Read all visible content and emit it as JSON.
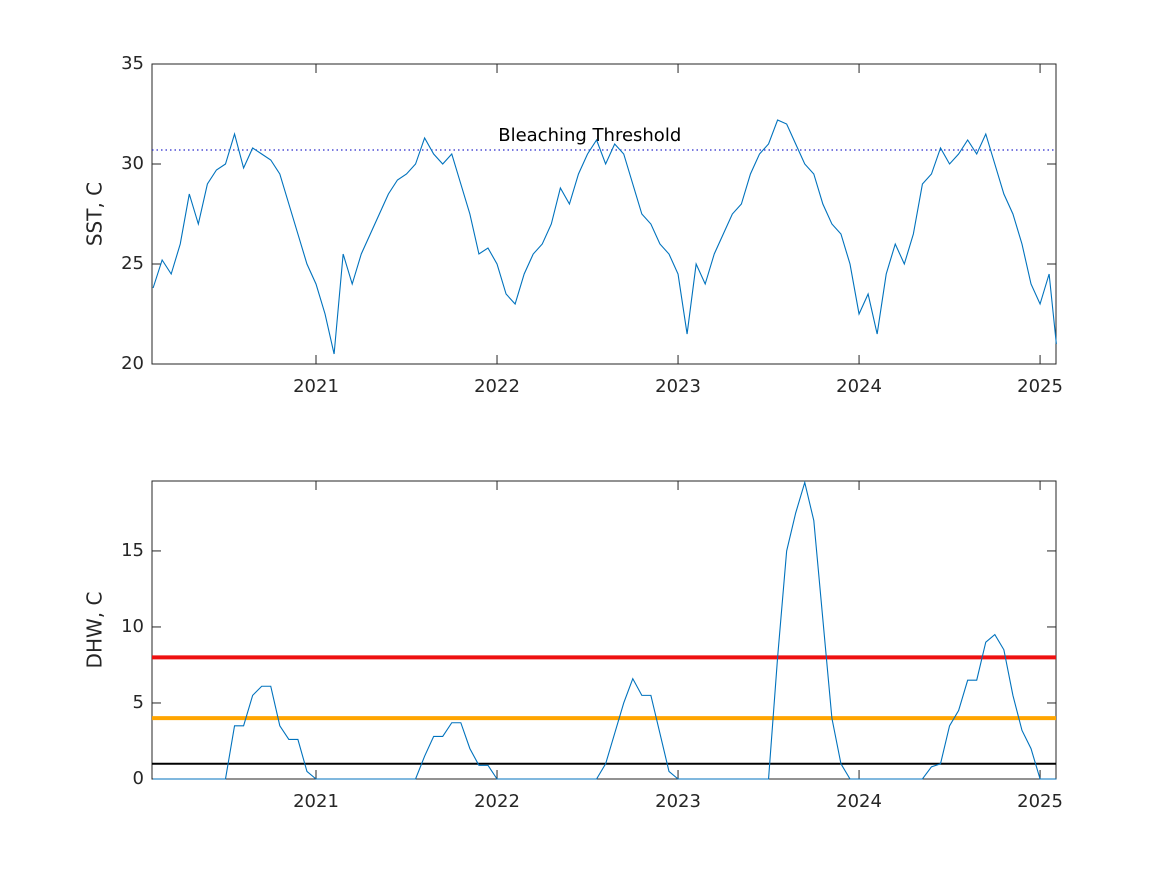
{
  "chart_data": [
    {
      "type": "line",
      "ylabel": "SST, C",
      "x": [
        2020.1,
        2020.15,
        2020.2,
        2020.25,
        2020.3,
        2020.35,
        2020.4,
        2020.45,
        2020.5,
        2020.55,
        2020.6,
        2020.65,
        2020.7,
        2020.75,
        2020.8,
        2020.85,
        2020.9,
        2020.95,
        2021.0,
        2021.05,
        2021.1,
        2021.15,
        2021.2,
        2021.25,
        2021.3,
        2021.35,
        2021.4,
        2021.45,
        2021.5,
        2021.55,
        2021.6,
        2021.65,
        2021.7,
        2021.75,
        2021.8,
        2021.85,
        2021.9,
        2021.95,
        2022.0,
        2022.05,
        2022.1,
        2022.15,
        2022.2,
        2022.25,
        2022.3,
        2022.35,
        2022.4,
        2022.45,
        2022.5,
        2022.55,
        2022.6,
        2022.65,
        2022.7,
        2022.75,
        2022.8,
        2022.85,
        2022.9,
        2022.95,
        2023.0,
        2023.05,
        2023.1,
        2023.15,
        2023.2,
        2023.25,
        2023.3,
        2023.35,
        2023.4,
        2023.45,
        2023.5,
        2023.55,
        2023.6,
        2023.65,
        2023.7,
        2023.75,
        2023.8,
        2023.85,
        2023.9,
        2023.95,
        2024.0,
        2024.05,
        2024.1,
        2024.15,
        2024.2,
        2024.25,
        2024.3,
        2024.35,
        2024.4,
        2024.45,
        2024.5,
        2024.55,
        2024.6,
        2024.65,
        2024.7,
        2024.75,
        2024.8,
        2024.85,
        2024.9,
        2024.95,
        2025.0,
        2025.05,
        2025.09
      ],
      "series": [
        {
          "color": "#0072bd",
          "values": [
            23.8,
            25.2,
            24.5,
            26.0,
            28.5,
            27.0,
            29.0,
            29.7,
            30.0,
            31.5,
            29.8,
            30.8,
            30.5,
            30.2,
            29.5,
            28.0,
            26.5,
            25.0,
            24.0,
            22.5,
            20.5,
            25.5,
            24.0,
            25.5,
            26.5,
            27.5,
            28.5,
            29.2,
            29.5,
            30.0,
            31.3,
            30.5,
            30.0,
            30.5,
            29.0,
            27.5,
            25.5,
            25.8,
            25.0,
            23.5,
            23.0,
            24.5,
            25.5,
            26.0,
            27.0,
            28.8,
            28.0,
            29.5,
            30.5,
            31.2,
            30.0,
            31.0,
            30.5,
            29.0,
            27.5,
            27.0,
            26.0,
            25.5,
            24.5,
            21.5,
            25.0,
            24.0,
            25.5,
            26.5,
            27.5,
            28.0,
            29.5,
            30.5,
            31.0,
            32.2,
            32.0,
            31.0,
            30.0,
            29.5,
            28.0,
            27.0,
            26.5,
            25.0,
            22.5,
            23.5,
            21.5,
            24.5,
            26.0,
            25.0,
            26.5,
            29.0,
            29.5,
            30.8,
            30.0,
            30.5,
            31.2,
            30.5,
            31.5,
            30.0,
            28.5,
            27.5,
            26.0,
            24.0,
            23.0,
            24.5,
            21.0
          ]
        }
      ],
      "xlim": [
        2020.094,
        2025.088
      ],
      "xticks": [
        2021,
        2022,
        2023,
        2024,
        2025
      ],
      "ylim": [
        20,
        35
      ],
      "yticks": [
        20,
        25,
        30,
        35
      ],
      "threshold": {
        "value": 30.7,
        "label": "Bleaching Threshold",
        "color": "#2a2acc"
      }
    },
    {
      "type": "line",
      "ylabel": "DHW, C",
      "x": [
        2020.1,
        2020.15,
        2020.2,
        2020.25,
        2020.3,
        2020.35,
        2020.4,
        2020.45,
        2020.5,
        2020.55,
        2020.6,
        2020.65,
        2020.7,
        2020.75,
        2020.8,
        2020.85,
        2020.9,
        2020.95,
        2021.0,
        2021.05,
        2021.1,
        2021.15,
        2021.2,
        2021.25,
        2021.3,
        2021.35,
        2021.4,
        2021.45,
        2021.5,
        2021.55,
        2021.6,
        2021.65,
        2021.7,
        2021.75,
        2021.8,
        2021.85,
        2021.9,
        2021.95,
        2022.0,
        2022.05,
        2022.1,
        2022.15,
        2022.2,
        2022.25,
        2022.3,
        2022.35,
        2022.4,
        2022.45,
        2022.5,
        2022.55,
        2022.6,
        2022.65,
        2022.7,
        2022.75,
        2022.8,
        2022.85,
        2022.9,
        2022.95,
        2023.0,
        2023.05,
        2023.1,
        2023.15,
        2023.2,
        2023.25,
        2023.3,
        2023.35,
        2023.4,
        2023.45,
        2023.5,
        2023.55,
        2023.6,
        2023.65,
        2023.7,
        2023.75,
        2023.8,
        2023.85,
        2023.9,
        2023.95,
        2024.0,
        2024.05,
        2024.1,
        2024.15,
        2024.2,
        2024.25,
        2024.3,
        2024.35,
        2024.4,
        2024.45,
        2024.5,
        2024.55,
        2024.6,
        2024.65,
        2024.7,
        2024.75,
        2024.8,
        2024.85,
        2024.9,
        2024.95,
        2025.0,
        2025.05,
        2025.09
      ],
      "series": [
        {
          "color": "#0072bd",
          "values": [
            0,
            0,
            0,
            0,
            0,
            0,
            0,
            0,
            0,
            3.5,
            3.5,
            5.5,
            6.1,
            6.1,
            3.5,
            2.6,
            2.6,
            0.5,
            0,
            0,
            0,
            0,
            0,
            0,
            0,
            0,
            0,
            0,
            0,
            0,
            1.5,
            2.8,
            2.8,
            3.7,
            3.7,
            2.0,
            0.9,
            0.9,
            0,
            0,
            0,
            0,
            0,
            0,
            0,
            0,
            0,
            0,
            0,
            0,
            1.0,
            3.0,
            5.0,
            6.6,
            5.5,
            5.5,
            3.0,
            0.5,
            0,
            0,
            0,
            0,
            0,
            0,
            0,
            0,
            0,
            0,
            0,
            8,
            15,
            17.5,
            19.5,
            17,
            10.5,
            4,
            1.0,
            0,
            0,
            0,
            0,
            0,
            0,
            0,
            0,
            0,
            0.8,
            1.0,
            3.5,
            4.5,
            6.5,
            6.5,
            9.0,
            9.5,
            8.5,
            5.5,
            3.2,
            2.0,
            0,
            0,
            0
          ]
        }
      ],
      "xlim": [
        2020.094,
        2025.088
      ],
      "xticks": [
        2021,
        2022,
        2023,
        2024,
        2025
      ],
      "ylim": [
        0,
        19.6
      ],
      "yticks": [
        0,
        5,
        10,
        15
      ],
      "hlines": [
        {
          "value": 8,
          "color": "#ee1111"
        },
        {
          "value": 4,
          "color": "#ffa500"
        },
        {
          "value": 1,
          "color": "#000000"
        }
      ]
    }
  ]
}
